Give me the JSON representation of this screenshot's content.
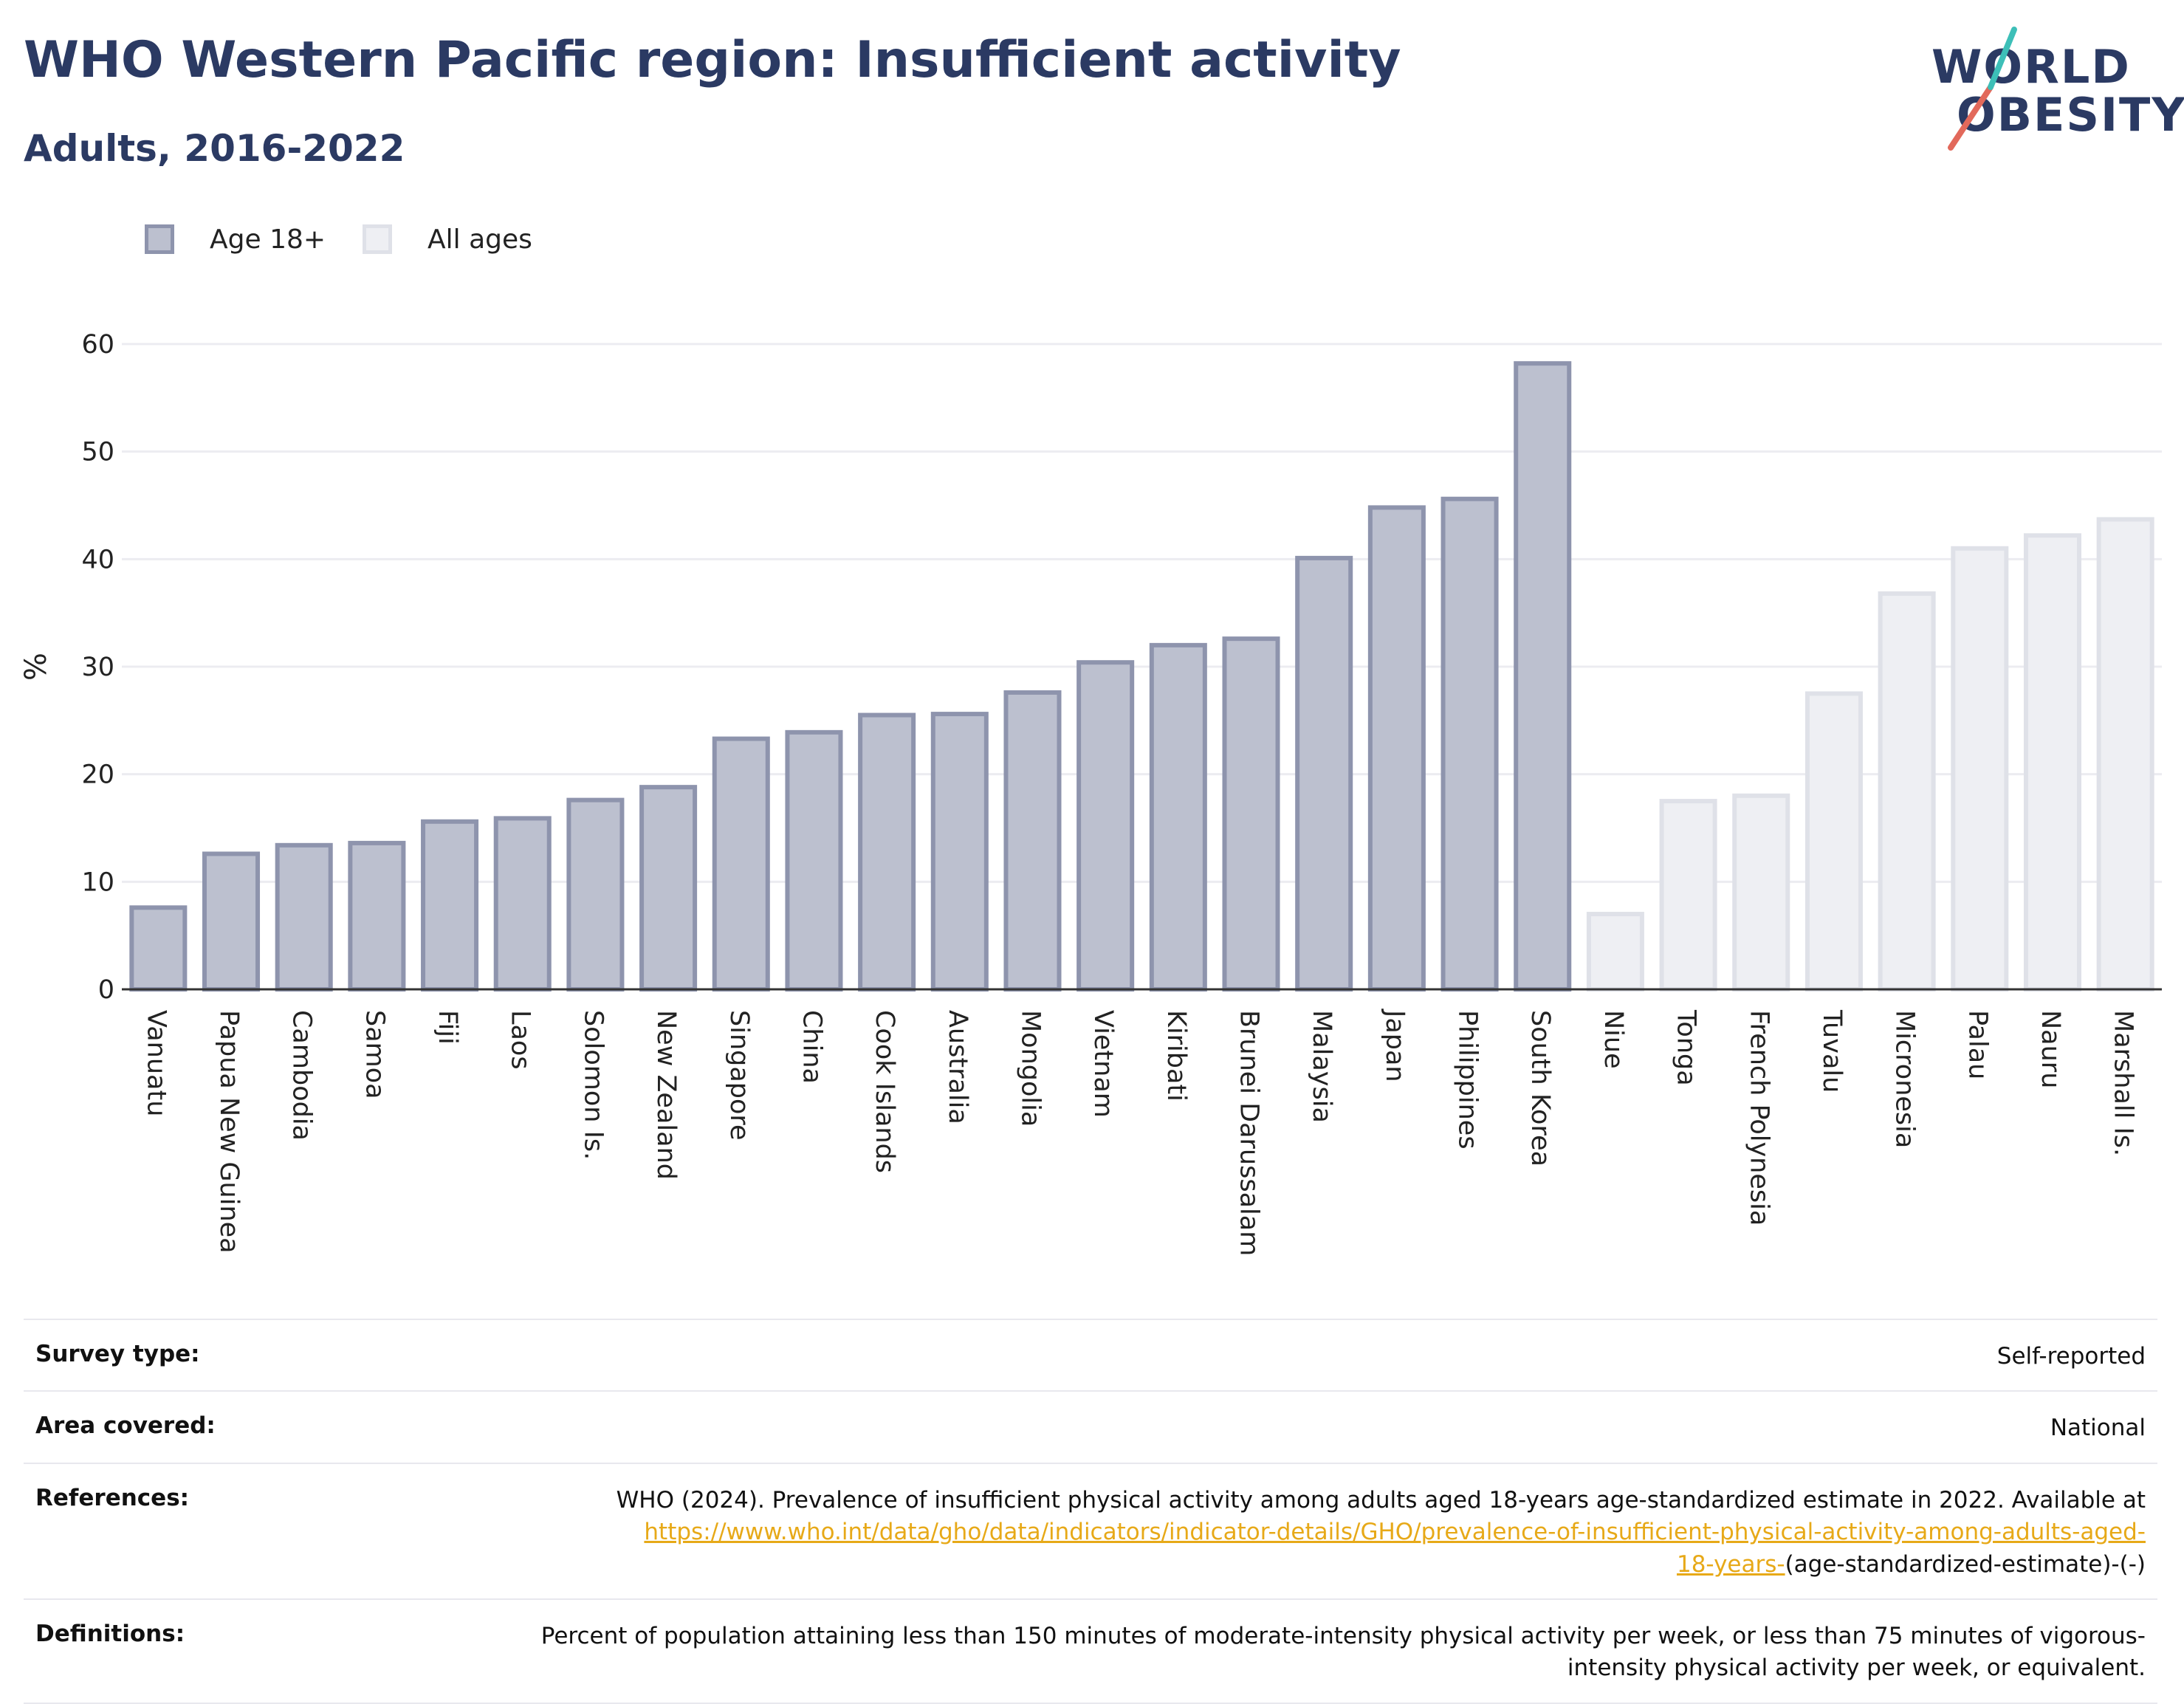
{
  "header": {
    "title": "WHO Western Pacific region: Insufficient activity",
    "subtitle": "Adults, 2016-2022"
  },
  "logo": {
    "line1": "WORLD",
    "line2": "OBESITY",
    "accent_colors": [
      "#e2695b",
      "#3dbfb8"
    ]
  },
  "legend": [
    {
      "label": "Age 18+",
      "fill": "#bcc0cf",
      "stroke": "#8e94ad"
    },
    {
      "label": "All ages",
      "fill": "#eeeff3",
      "stroke": "#dfe1e8"
    }
  ],
  "chart_data": {
    "type": "bar",
    "ylabel": "%",
    "ylim": [
      0,
      60
    ],
    "yticks": [
      0,
      10,
      20,
      30,
      40,
      50,
      60
    ],
    "grid": true,
    "categories": [
      "Vanuatu",
      "Papua New Guinea",
      "Cambodia",
      "Samoa",
      "Fiji",
      "Laos",
      "Solomon Is.",
      "New Zealand",
      "Singapore",
      "China",
      "Cook Islands",
      "Australia",
      "Mongolia",
      "Vietnam",
      "Kiribati",
      "Brunei Darussalam",
      "Malaysia",
      "Japan",
      "Philippines",
      "South Korea",
      "Niue",
      "Tonga",
      "French Polynesia",
      "Tuvalu",
      "Micronesia",
      "Palau",
      "Nauru",
      "Marshall Is."
    ],
    "values": [
      7.6,
      12.6,
      13.4,
      13.6,
      15.6,
      15.9,
      17.6,
      18.8,
      23.3,
      23.9,
      25.5,
      25.6,
      27.6,
      30.4,
      32.0,
      32.6,
      40.1,
      44.8,
      45.6,
      58.2,
      7.0,
      17.5,
      18.0,
      27.5,
      36.8,
      41.0,
      42.2,
      43.7
    ],
    "groups": [
      "Age 18+",
      "Age 18+",
      "Age 18+",
      "Age 18+",
      "Age 18+",
      "Age 18+",
      "Age 18+",
      "Age 18+",
      "Age 18+",
      "Age 18+",
      "Age 18+",
      "Age 18+",
      "Age 18+",
      "Age 18+",
      "Age 18+",
      "Age 18+",
      "Age 18+",
      "Age 18+",
      "Age 18+",
      "Age 18+",
      "All ages",
      "All ages",
      "All ages",
      "All ages",
      "All ages",
      "All ages",
      "All ages",
      "All ages"
    ],
    "legend_position": "top-left"
  },
  "meta": {
    "survey_type_label": "Survey type:",
    "survey_type_value": "Self-reported",
    "area_label": "Area covered:",
    "area_value": "National",
    "references_label": "References:",
    "references_text": "WHO (2024). Prevalence of insufficient physical activity among adults aged 18-years age-standardized estimate in 2022. Available at",
    "references_link_1": "https://www.who.int/data/gho/data/indicators/indicator-details/GHO/prevalence-of-insufficient-physical-activity-among-adults-aged-",
    "references_link_2": "18-years-",
    "references_tail": "(age-standardized-estimate)-(-)",
    "definitions_label": "Definitions:",
    "definitions_text": "Percent of population attaining less than 150 minutes of moderate-intensity physical activity per week, or less than 75 minutes of vigorous-intensity physical activity per week, or equivalent."
  }
}
